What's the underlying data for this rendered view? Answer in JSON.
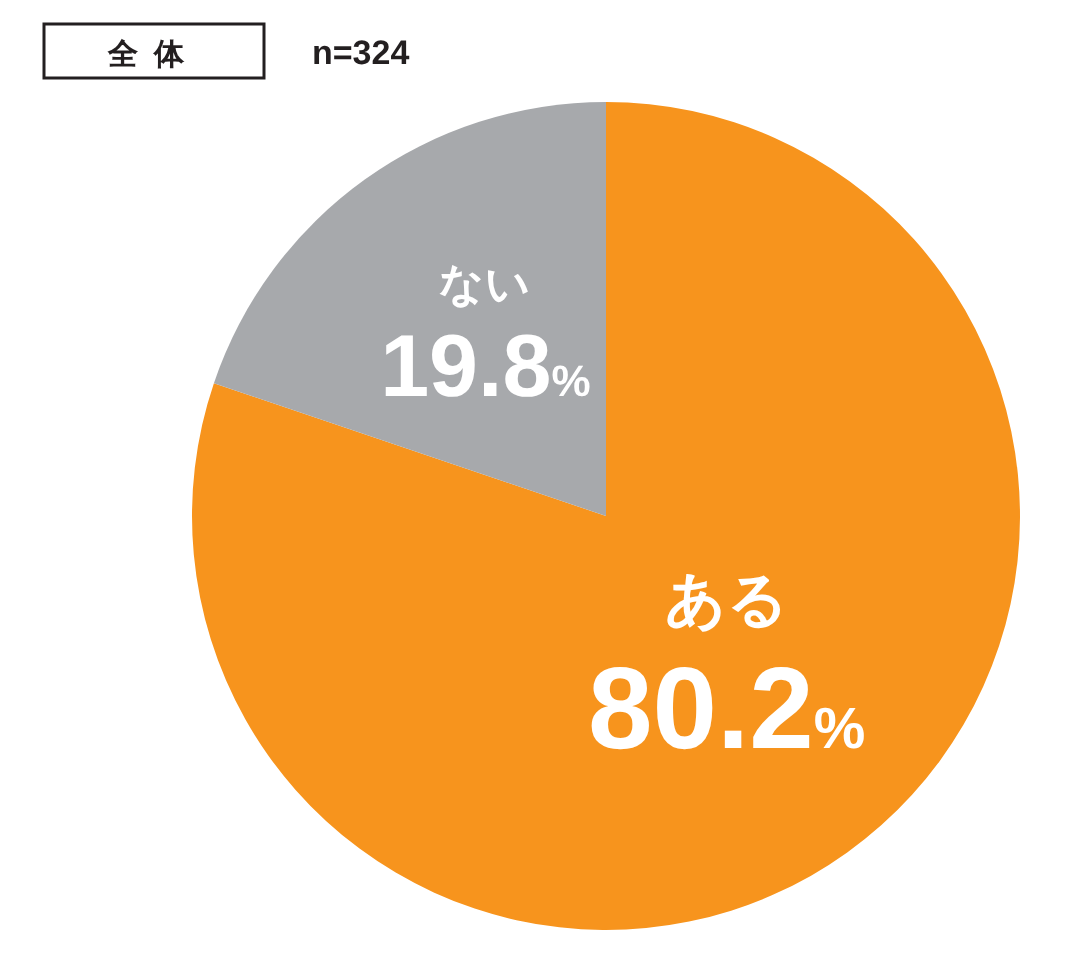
{
  "chart_data": {
    "type": "pie",
    "title": "全体",
    "subtitle": "n=324",
    "categories": [
      "ある",
      "ない"
    ],
    "values": [
      80.2,
      19.8
    ],
    "colors": [
      "#f7941d",
      "#a7a9ac"
    ],
    "value_labels": [
      "80.2%",
      "19.8%"
    ]
  }
}
